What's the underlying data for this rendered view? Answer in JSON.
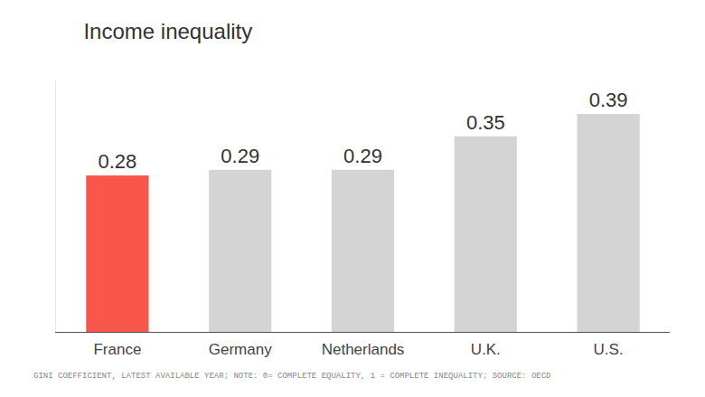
{
  "chart_data": {
    "type": "bar",
    "title": "Income inequality",
    "categories": [
      "France",
      "Germany",
      "Netherlands",
      "U.K.",
      "U.S."
    ],
    "values": [
      0.28,
      0.29,
      0.29,
      0.35,
      0.39
    ],
    "colors": [
      "#f9574b",
      "#d4d4d4",
      "#d4d4d4",
      "#d4d4d4",
      "#d4d4d4"
    ],
    "ylim": [
      0,
      0.45
    ],
    "yticks": [
      0
    ],
    "tick_labels": "x",
    "grid": false,
    "data_labels": true,
    "annotations": [
      "GINI COEFFICIENT, LATEST AVAILABLE YEAR; NOTE: 0= COMPLETE EQUALITY, 1 = COMPLETE INEQUALITY; SOURCE: OECD"
    ]
  }
}
